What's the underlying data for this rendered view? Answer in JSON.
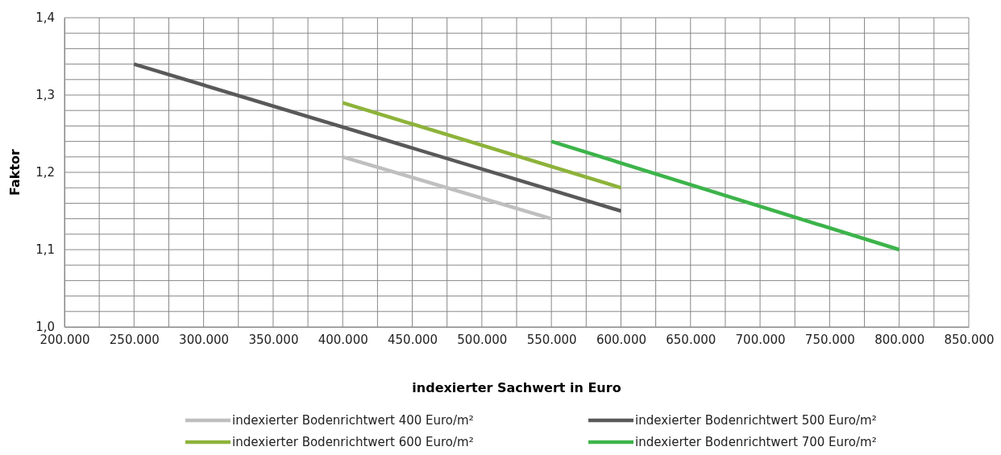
{
  "chart_data": {
    "type": "line",
    "xlabel": "indexierter Sachwert in Euro",
    "ylabel": "Faktor",
    "xlim": [
      200000,
      850000
    ],
    "xticks": [
      {
        "value": 200000,
        "label": "200.000"
      },
      {
        "value": 225000,
        "label": null
      },
      {
        "value": 250000,
        "label": "250.000"
      },
      {
        "value": 275000,
        "label": null
      },
      {
        "value": 300000,
        "label": "300.000"
      },
      {
        "value": 325000,
        "label": null
      },
      {
        "value": 350000,
        "label": "350.000"
      },
      {
        "value": 375000,
        "label": null
      },
      {
        "value": 400000,
        "label": "400.000"
      },
      {
        "value": 425000,
        "label": null
      },
      {
        "value": 450000,
        "label": "450.000"
      },
      {
        "value": 475000,
        "label": null
      },
      {
        "value": 500000,
        "label": "500.000"
      },
      {
        "value": 525000,
        "label": null
      },
      {
        "value": 550000,
        "label": "550.000"
      },
      {
        "value": 575000,
        "label": null
      },
      {
        "value": 600000,
        "label": "600.000"
      },
      {
        "value": 625000,
        "label": null
      },
      {
        "value": 650000,
        "label": "650.000"
      },
      {
        "value": 675000,
        "label": null
      },
      {
        "value": 700000,
        "label": "700.000"
      },
      {
        "value": 725000,
        "label": null
      },
      {
        "value": 750000,
        "label": "750.000"
      },
      {
        "value": 775000,
        "label": null
      },
      {
        "value": 800000,
        "label": "800.000"
      },
      {
        "value": 825000,
        "label": null
      },
      {
        "value": 850000,
        "label": "850.000"
      }
    ],
    "ylim": [
      1.0,
      1.4
    ],
    "yticks": [
      {
        "value": 1.0,
        "label": "1,0"
      },
      {
        "value": 1.02,
        "label": null
      },
      {
        "value": 1.04,
        "label": null
      },
      {
        "value": 1.06,
        "label": null
      },
      {
        "value": 1.08,
        "label": null
      },
      {
        "value": 1.1,
        "label": "1,1"
      },
      {
        "value": 1.12,
        "label": null
      },
      {
        "value": 1.14,
        "label": null
      },
      {
        "value": 1.16,
        "label": null
      },
      {
        "value": 1.18,
        "label": null
      },
      {
        "value": 1.2,
        "label": "1,2"
      },
      {
        "value": 1.22,
        "label": null
      },
      {
        "value": 1.24,
        "label": null
      },
      {
        "value": 1.26,
        "label": null
      },
      {
        "value": 1.28,
        "label": null
      },
      {
        "value": 1.3,
        "label": "1,3"
      },
      {
        "value": 1.32,
        "label": null
      },
      {
        "value": 1.34,
        "label": null
      },
      {
        "value": 1.36,
        "label": null
      },
      {
        "value": 1.38,
        "label": null
      },
      {
        "value": 1.4,
        "label": "1,4"
      }
    ],
    "grid": true,
    "legend": "bottom",
    "marker": "none",
    "line_style": "solid",
    "series": [
      {
        "name": "indexierter Bodenrichtwert 400 Euro/m²",
        "color": "#bfbfbf",
        "x": [
          400000,
          550000
        ],
        "values": [
          1.22,
          1.14
        ]
      },
      {
        "name": "indexierter Bodenrichtwert 500 Euro/m²",
        "color": "#595959",
        "x": [
          250000,
          600000
        ],
        "values": [
          1.34,
          1.15
        ]
      },
      {
        "name": "indexierter Bodenrichtwert 600 Euro/m²",
        "color": "#8db33a",
        "x": [
          400000,
          600000
        ],
        "values": [
          1.29,
          1.18
        ]
      },
      {
        "name": "indexierter Bodenrichtwert 700 Euro/m²",
        "color": "#3cb44a",
        "x": [
          550000,
          800000
        ],
        "values": [
          1.24,
          1.1
        ]
      }
    ]
  }
}
